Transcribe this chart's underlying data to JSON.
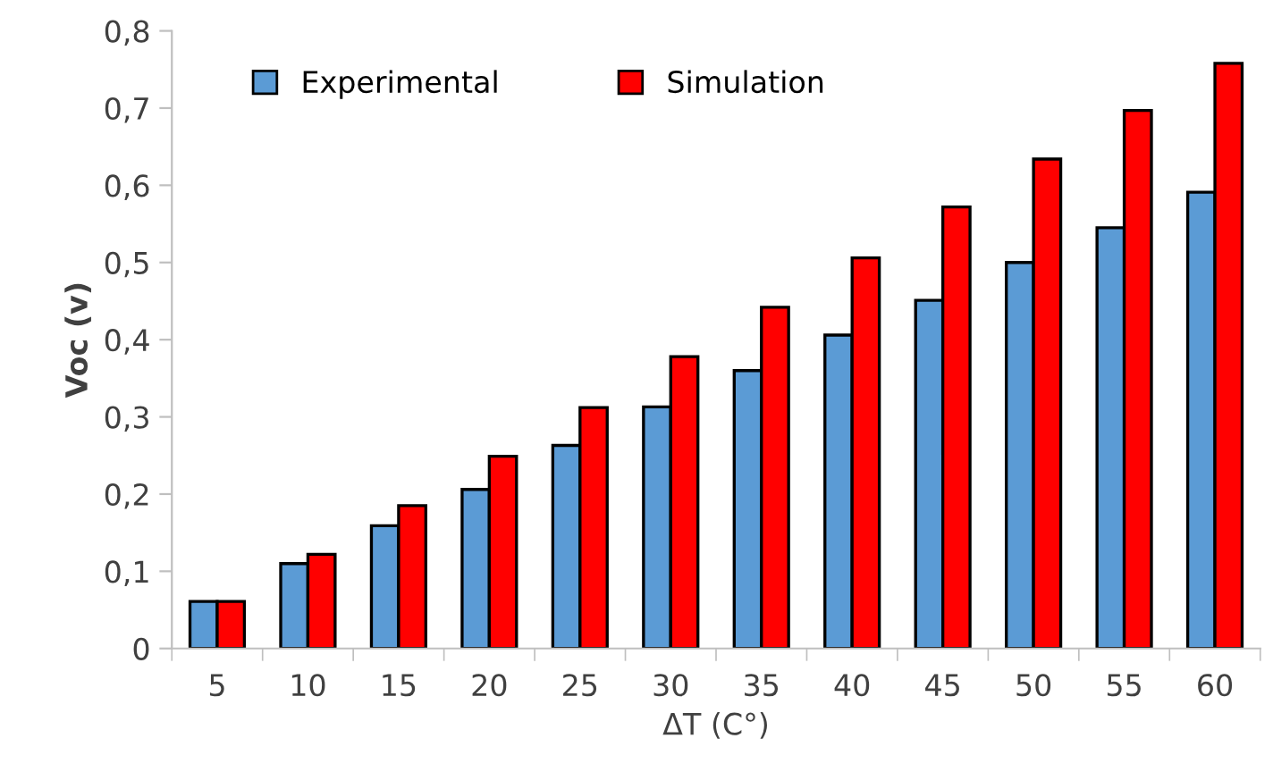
{
  "chart_data": {
    "type": "bar",
    "xlabel": "ΔT (C°)",
    "ylabel": "Voc (v)",
    "categories": [
      "5",
      "10",
      "15",
      "20",
      "25",
      "30",
      "35",
      "40",
      "45",
      "50",
      "55",
      "60"
    ],
    "series": [
      {
        "name": "Experimental",
        "color": "#5b9bd5",
        "values": [
          0.061,
          0.11,
          0.159,
          0.206,
          0.263,
          0.313,
          0.36,
          0.406,
          0.451,
          0.5,
          0.545,
          0.591
        ]
      },
      {
        "name": "Simulation",
        "color": "#ff0000",
        "values": [
          0.061,
          0.122,
          0.185,
          0.249,
          0.312,
          0.378,
          0.442,
          0.506,
          0.572,
          0.634,
          0.697,
          0.758
        ]
      }
    ],
    "ylim": [
      0,
      0.8
    ],
    "yticks": [
      {
        "value": 0,
        "label": "0"
      },
      {
        "value": 0.1,
        "label": "0,1"
      },
      {
        "value": 0.2,
        "label": "0,2"
      },
      {
        "value": 0.3,
        "label": "0,3"
      },
      {
        "value": 0.4,
        "label": "0,4"
      },
      {
        "value": 0.5,
        "label": "0,5"
      },
      {
        "value": 0.6,
        "label": "0,6"
      },
      {
        "value": 0.7,
        "label": "0,7"
      },
      {
        "value": 0.8,
        "label": "0,8"
      }
    ],
    "grid": false,
    "legend": "top left"
  }
}
